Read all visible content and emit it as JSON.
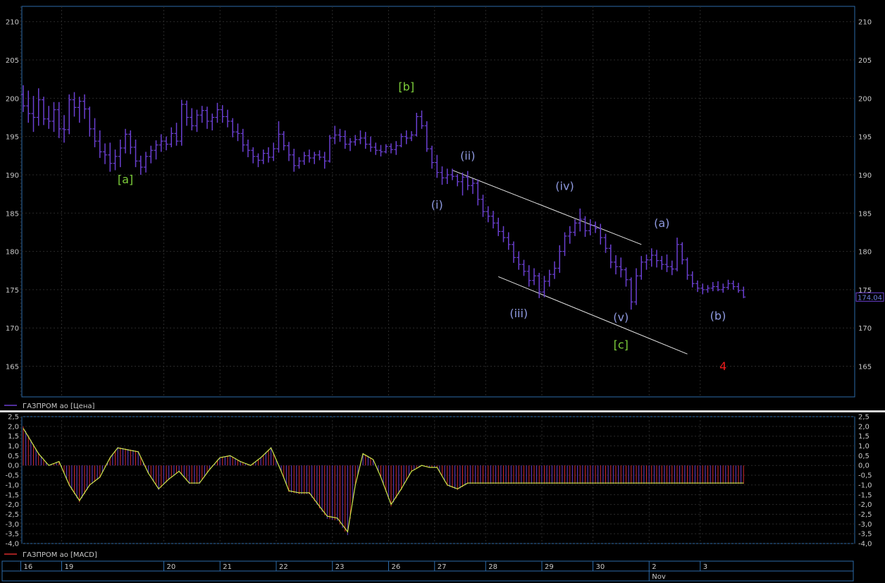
{
  "chart_data": [
    {
      "type": "bar",
      "ohlc": true,
      "ylim": [
        161,
        212
      ],
      "ticks": [
        165,
        170,
        175,
        180,
        185,
        190,
        195,
        200,
        205,
        210
      ],
      "grid": true,
      "legend": "ГАЗПРОМ ао [Цена]",
      "last_price": "174.04",
      "series_color": "#6a3fd0",
      "wave_labels": [
        {
          "text": "[a]",
          "bar": 20,
          "price": 188.9,
          "color": "#7ccd3a"
        },
        {
          "text": "[b]",
          "bar": 75,
          "price": 201.0,
          "color": "#7ccd3a"
        },
        {
          "text": "(i)",
          "bar": 81,
          "price": 185.6,
          "color": "#8f9ae0"
        },
        {
          "text": "(ii)",
          "bar": 87,
          "price": 192.0,
          "color": "#8f9ae0"
        },
        {
          "text": "(iii)",
          "bar": 97,
          "price": 171.4,
          "color": "#8f9ae0"
        },
        {
          "text": "(iv)",
          "bar": 106,
          "price": 188.0,
          "color": "#8f9ae0"
        },
        {
          "text": "(v)",
          "bar": 117,
          "price": 170.9,
          "color": "#8f9ae0"
        },
        {
          "text": "[c]",
          "bar": 117,
          "price": 167.3,
          "color": "#7ccd3a"
        },
        {
          "text": "(a)",
          "bar": 125,
          "price": 183.2,
          "color": "#8f9ae0"
        },
        {
          "text": "(b)",
          "bar": 136,
          "price": 171.1,
          "color": "#8f9ae0"
        },
        {
          "text": "4",
          "bar": 137,
          "price": 164.5,
          "color": "#ee1c1c"
        }
      ],
      "trendlines": [
        {
          "from": [
            84,
            190.6
          ],
          "to": [
            121,
            180.9
          ]
        },
        {
          "from": [
            93,
            176.7
          ],
          "to": [
            130,
            166.6
          ]
        }
      ],
      "bars": [
        [
          200.5,
          201.7,
          198.2,
          199.0
        ],
        [
          199.0,
          201.0,
          196.8,
          198.0
        ],
        [
          198.0,
          200.3,
          195.6,
          197.5
        ],
        [
          197.5,
          201.3,
          196.4,
          199.8
        ],
        [
          199.8,
          200.2,
          196.5,
          197.3
        ],
        [
          197.3,
          199.0,
          196.0,
          197.0
        ],
        [
          197.0,
          199.5,
          195.6,
          198.5
        ],
        [
          198.5,
          199.5,
          194.8,
          196.0
        ],
        [
          196.0,
          197.8,
          194.2,
          195.9
        ],
        [
          195.9,
          200.5,
          195.3,
          199.8
        ],
        [
          199.8,
          200.8,
          197.6,
          198.8
        ],
        [
          198.8,
          200.2,
          196.8,
          199.6
        ],
        [
          199.6,
          200.5,
          197.3,
          198.6
        ],
        [
          198.6,
          198.9,
          195.0,
          196.0
        ],
        [
          196.0,
          197.4,
          193.6,
          194.4
        ],
        [
          194.4,
          195.8,
          192.2,
          193.0
        ],
        [
          193.0,
          194.1,
          191.4,
          192.6
        ],
        [
          192.6,
          194.2,
          190.4,
          191.5
        ],
        [
          191.5,
          193.3,
          190.6,
          192.4
        ],
        [
          192.4,
          194.6,
          191.0,
          193.5
        ],
        [
          193.5,
          196.0,
          192.8,
          195.3
        ],
        [
          195.3,
          195.8,
          192.7,
          193.6
        ],
        [
          193.6,
          194.6,
          191.0,
          191.8
        ],
        [
          191.8,
          192.5,
          190.0,
          191.0
        ],
        [
          191.0,
          193.0,
          190.3,
          192.4
        ],
        [
          192.4,
          193.8,
          191.5,
          193.2
        ],
        [
          193.2,
          194.5,
          192.0,
          193.9
        ],
        [
          193.9,
          195.3,
          193.0,
          194.4
        ],
        [
          194.4,
          195.0,
          193.2,
          194.0
        ],
        [
          194.0,
          196.2,
          193.6,
          195.4
        ],
        [
          195.4,
          196.8,
          193.8,
          194.4
        ],
        [
          194.4,
          199.8,
          193.8,
          199.2
        ],
        [
          199.2,
          199.7,
          196.4,
          197.5
        ],
        [
          197.5,
          198.7,
          195.8,
          196.4
        ],
        [
          196.4,
          198.5,
          195.6,
          197.8
        ],
        [
          197.8,
          199.0,
          196.8,
          198.4
        ],
        [
          198.4,
          198.9,
          196.0,
          197.0
        ],
        [
          197.0,
          198.0,
          195.8,
          197.5
        ],
        [
          197.5,
          199.4,
          196.8,
          198.5
        ],
        [
          198.5,
          199.1,
          196.8,
          197.6
        ],
        [
          197.6,
          198.5,
          196.2,
          197.0
        ],
        [
          197.0,
          197.4,
          194.9,
          195.6
        ],
        [
          195.6,
          196.7,
          194.4,
          195.4
        ],
        [
          195.4,
          196.0,
          193.0,
          193.9
        ],
        [
          193.9,
          194.6,
          192.3,
          193.2
        ],
        [
          193.2,
          193.6,
          191.5,
          192.4
        ],
        [
          192.4,
          192.8,
          191.0,
          191.9
        ],
        [
          191.9,
          193.3,
          191.4,
          192.8
        ],
        [
          192.8,
          193.6,
          191.6,
          192.3
        ],
        [
          192.3,
          194.2,
          191.8,
          193.4
        ],
        [
          193.4,
          197.0,
          192.9,
          195.3
        ],
        [
          195.3,
          195.7,
          193.2,
          193.8
        ],
        [
          193.8,
          194.3,
          191.8,
          192.6
        ],
        [
          192.6,
          193.4,
          190.4,
          191.2
        ],
        [
          191.2,
          192.3,
          190.8,
          191.8
        ],
        [
          191.8,
          193.0,
          191.3,
          192.5
        ],
        [
          192.5,
          193.3,
          191.6,
          192.2
        ],
        [
          192.2,
          193.0,
          191.4,
          192.6
        ],
        [
          192.6,
          193.2,
          191.9,
          192.3
        ],
        [
          192.3,
          193.0,
          190.8,
          191.8
        ],
        [
          191.8,
          195.2,
          191.6,
          194.8
        ],
        [
          194.8,
          196.4,
          194.0,
          195.2
        ],
        [
          195.2,
          196.0,
          194.3,
          195.0
        ],
        [
          195.0,
          195.8,
          193.4,
          194.0
        ],
        [
          194.0,
          194.8,
          193.1,
          194.3
        ],
        [
          194.3,
          195.2,
          193.8,
          194.6
        ],
        [
          194.6,
          195.8,
          194.0,
          194.8
        ],
        [
          194.8,
          195.6,
          193.4,
          194.0
        ],
        [
          194.0,
          195.0,
          193.0,
          193.6
        ],
        [
          193.6,
          194.2,
          192.6,
          193.2
        ],
        [
          193.2,
          193.9,
          192.4,
          193.0
        ],
        [
          193.0,
          194.0,
          192.8,
          193.7
        ],
        [
          193.7,
          194.1,
          192.8,
          193.3
        ],
        [
          193.3,
          194.4,
          192.6,
          193.8
        ],
        [
          193.8,
          195.4,
          193.6,
          195.0
        ],
        [
          195.0,
          195.8,
          194.0,
          194.8
        ],
        [
          194.8,
          195.7,
          194.4,
          195.2
        ],
        [
          195.2,
          198.1,
          195.0,
          197.6
        ],
        [
          197.6,
          198.4,
          196.0,
          196.4
        ],
        [
          196.4,
          197.0,
          193.0,
          193.4
        ],
        [
          193.4,
          193.8,
          190.8,
          191.6
        ],
        [
          191.6,
          192.6,
          189.6,
          190.3
        ],
        [
          190.3,
          191.1,
          188.7,
          189.6
        ],
        [
          189.6,
          190.8,
          188.8,
          190.0
        ],
        [
          190.0,
          190.8,
          189.3,
          189.8
        ],
        [
          189.8,
          190.1,
          188.5,
          189.1
        ],
        [
          189.1,
          190.3,
          187.3,
          189.7
        ],
        [
          189.7,
          190.5,
          188.0,
          188.6
        ],
        [
          188.6,
          189.5,
          187.5,
          188.9
        ],
        [
          188.9,
          189.4,
          186.0,
          186.8
        ],
        [
          186.8,
          187.4,
          184.5,
          185.2
        ],
        [
          185.2,
          185.9,
          183.8,
          184.6
        ],
        [
          184.6,
          185.3,
          183.0,
          183.7
        ],
        [
          183.7,
          184.4,
          182.0,
          182.6
        ],
        [
          182.6,
          183.3,
          181.2,
          181.8
        ],
        [
          181.8,
          182.5,
          180.2,
          180.9
        ],
        [
          180.9,
          181.3,
          178.5,
          179.2
        ],
        [
          179.2,
          180.0,
          177.6,
          178.3
        ],
        [
          178.3,
          178.9,
          176.8,
          177.4
        ],
        [
          177.4,
          178.2,
          175.4,
          176.2
        ],
        [
          176.2,
          177.8,
          175.6,
          176.8
        ],
        [
          176.8,
          177.2,
          173.9,
          174.7
        ],
        [
          174.7,
          176.8,
          174.0,
          176.1
        ],
        [
          176.1,
          177.6,
          175.4,
          177.0
        ],
        [
          177.0,
          178.7,
          176.4,
          177.8
        ],
        [
          177.8,
          180.8,
          177.2,
          180.0
        ],
        [
          180.0,
          182.5,
          179.4,
          182.0
        ],
        [
          182.0,
          183.3,
          181.0,
          182.5
        ],
        [
          182.5,
          184.2,
          182.0,
          183.7
        ],
        [
          183.7,
          185.6,
          182.6,
          184.2
        ],
        [
          184.2,
          184.6,
          181.9,
          182.7
        ],
        [
          182.7,
          184.2,
          182.1,
          183.4
        ],
        [
          183.4,
          183.9,
          182.4,
          183.0
        ],
        [
          183.0,
          183.6,
          180.9,
          181.8
        ],
        [
          181.8,
          182.3,
          179.8,
          180.4
        ],
        [
          180.4,
          180.9,
          177.8,
          178.6
        ],
        [
          178.6,
          179.5,
          177.0,
          178.0
        ],
        [
          178.0,
          179.2,
          176.6,
          177.6
        ],
        [
          177.6,
          177.9,
          175.4,
          176.3
        ],
        [
          176.3,
          176.6,
          172.4,
          173.4
        ],
        [
          173.4,
          177.8,
          173.0,
          176.8
        ],
        [
          176.8,
          179.4,
          176.3,
          178.6
        ],
        [
          178.6,
          179.6,
          177.6,
          178.9
        ],
        [
          178.9,
          180.4,
          178.0,
          179.5
        ],
        [
          179.5,
          180.2,
          177.9,
          178.8
        ],
        [
          178.8,
          179.4,
          177.6,
          178.3
        ],
        [
          178.3,
          179.6,
          177.3,
          178.0
        ],
        [
          178.0,
          178.8,
          176.9,
          177.7
        ],
        [
          177.7,
          181.8,
          177.4,
          180.9
        ],
        [
          180.9,
          181.2,
          178.3,
          178.9
        ],
        [
          178.9,
          179.2,
          176.3,
          176.9
        ],
        [
          176.9,
          177.4,
          175.3,
          175.8
        ],
        [
          175.8,
          176.2,
          174.7,
          175.2
        ],
        [
          175.2,
          175.8,
          174.4,
          175.0
        ],
        [
          175.0,
          175.6,
          174.6,
          175.2
        ],
        [
          175.2,
          176.0,
          174.8,
          175.4
        ],
        [
          175.4,
          176.1,
          174.8,
          175.0
        ],
        [
          175.0,
          175.8,
          174.6,
          175.3
        ],
        [
          175.3,
          176.3,
          175.0,
          175.8
        ],
        [
          175.8,
          176.2,
          175.0,
          175.4
        ],
        [
          175.4,
          175.9,
          174.6,
          174.9
        ],
        [
          174.9,
          175.4,
          173.9,
          174.04
        ]
      ]
    },
    {
      "type": "bar",
      "ylim": [
        -4.0,
        2.5
      ],
      "ticks": [
        2.5,
        2.0,
        1.5,
        1.0,
        0.5,
        0.0,
        -0.5,
        -1.0,
        -1.5,
        -2.0,
        -2.5,
        -3.0,
        -3.5,
        -4.0
      ],
      "tick_labels": [
        "2,5",
        "2,0",
        "1,5",
        "1,0",
        "0,5",
        "0,0",
        "-0,5",
        "-1,0",
        "-1,5",
        "-2,0",
        "-2,5",
        "-3,0",
        "-3,5",
        "-4,0"
      ],
      "legend": "ГАЗПРОМ ао [MACD]",
      "signal_color": "#cfe84a",
      "histogram_colors": [
        "#d42a2a",
        "#6a3fd0"
      ],
      "macd_knots": [
        [
          0,
          1.9
        ],
        [
          6,
          0.6
        ],
        [
          10,
          0.0
        ],
        [
          14,
          0.2
        ],
        [
          18,
          -1.0
        ],
        [
          22,
          -1.8
        ],
        [
          26,
          -1.0
        ],
        [
          30,
          -0.6
        ],
        [
          34,
          0.4
        ],
        [
          37,
          0.9
        ],
        [
          41,
          0.8
        ],
        [
          45,
          0.7
        ],
        [
          49,
          -0.4
        ],
        [
          53,
          -1.2
        ],
        [
          57,
          -0.7
        ],
        [
          61,
          -0.3
        ],
        [
          65,
          -0.9
        ],
        [
          69,
          -0.9
        ],
        [
          73,
          -0.2
        ],
        [
          77,
          0.4
        ],
        [
          81,
          0.5
        ],
        [
          85,
          0.2
        ],
        [
          89,
          0.0
        ],
        [
          93,
          0.4
        ],
        [
          97,
          0.9
        ],
        [
          101,
          -0.3
        ],
        [
          104,
          -1.3
        ],
        [
          108,
          -1.4
        ],
        [
          112,
          -1.4
        ],
        [
          116,
          -2.1
        ],
        [
          119,
          -2.6
        ],
        [
          123,
          -2.7
        ],
        [
          127,
          -3.4
        ],
        [
          130,
          -1.0
        ],
        [
          133,
          0.6
        ],
        [
          137,
          0.3
        ],
        [
          140,
          -0.6
        ],
        [
          144,
          -2.0
        ],
        [
          148,
          -1.2
        ],
        [
          152,
          -0.3
        ],
        [
          156,
          0.0
        ],
        [
          159,
          -0.1
        ],
        [
          162,
          -0.1
        ],
        [
          166,
          -1.0
        ],
        [
          170,
          -1.2
        ],
        [
          174,
          -0.9
        ]
      ]
    }
  ],
  "date_axis": {
    "labels": [
      "16",
      "19",
      "20",
      "21",
      "22",
      "23",
      "26",
      "27",
      "28",
      "29",
      "30",
      "2",
      "3"
    ],
    "month_label": "Nov",
    "month_at": 11
  }
}
